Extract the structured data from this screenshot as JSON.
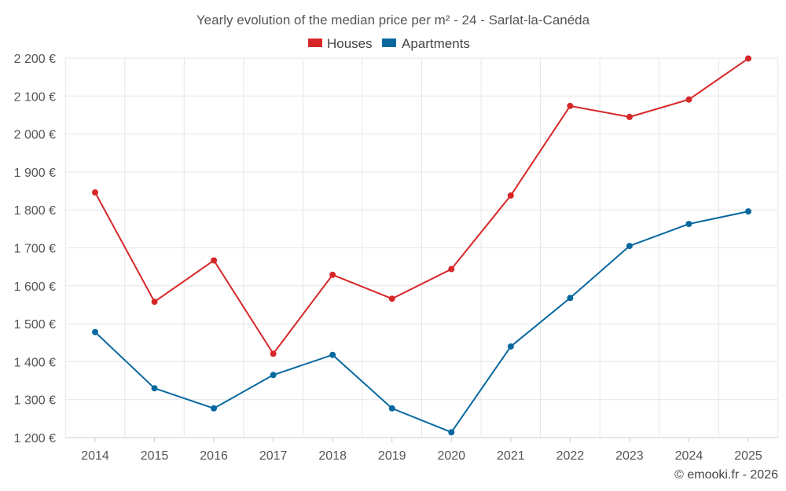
{
  "chart_data": {
    "type": "line",
    "title": "Yearly evolution of the median price per m² - 24 - Sarlat-la-Canéda",
    "categories": [
      "2014",
      "2015",
      "2016",
      "2017",
      "2018",
      "2019",
      "2020",
      "2021",
      "2022",
      "2023",
      "2024",
      "2025"
    ],
    "series": [
      {
        "name": "Houses",
        "color": "#d62728",
        "values": [
          1846,
          1558,
          1667,
          1421,
          1629,
          1566,
          1644,
          1838,
          2074,
          2045,
          2091,
          2199
        ]
      },
      {
        "name": "Apartments",
        "color": "#07689f",
        "values": [
          1478,
          1330,
          1277,
          1365,
          1418,
          1277,
          1214,
          1440,
          1568,
          1705,
          1763,
          1796
        ]
      }
    ],
    "ylim": [
      1200,
      2200
    ],
    "yticks": [
      1200,
      1300,
      1400,
      1500,
      1600,
      1700,
      1800,
      1900,
      2000,
      2100,
      2200
    ],
    "ytick_labels": [
      "1 200 €",
      "1 300 €",
      "1 400 €",
      "1 500 €",
      "1 600 €",
      "1 700 €",
      "1 800 €",
      "1 900 €",
      "2 000 €",
      "2 100 €",
      "2 200 €"
    ],
    "grid": true,
    "legend_position": "top-center",
    "xlabel": "",
    "ylabel": ""
  },
  "credit": "© emooki.fr - 2026"
}
